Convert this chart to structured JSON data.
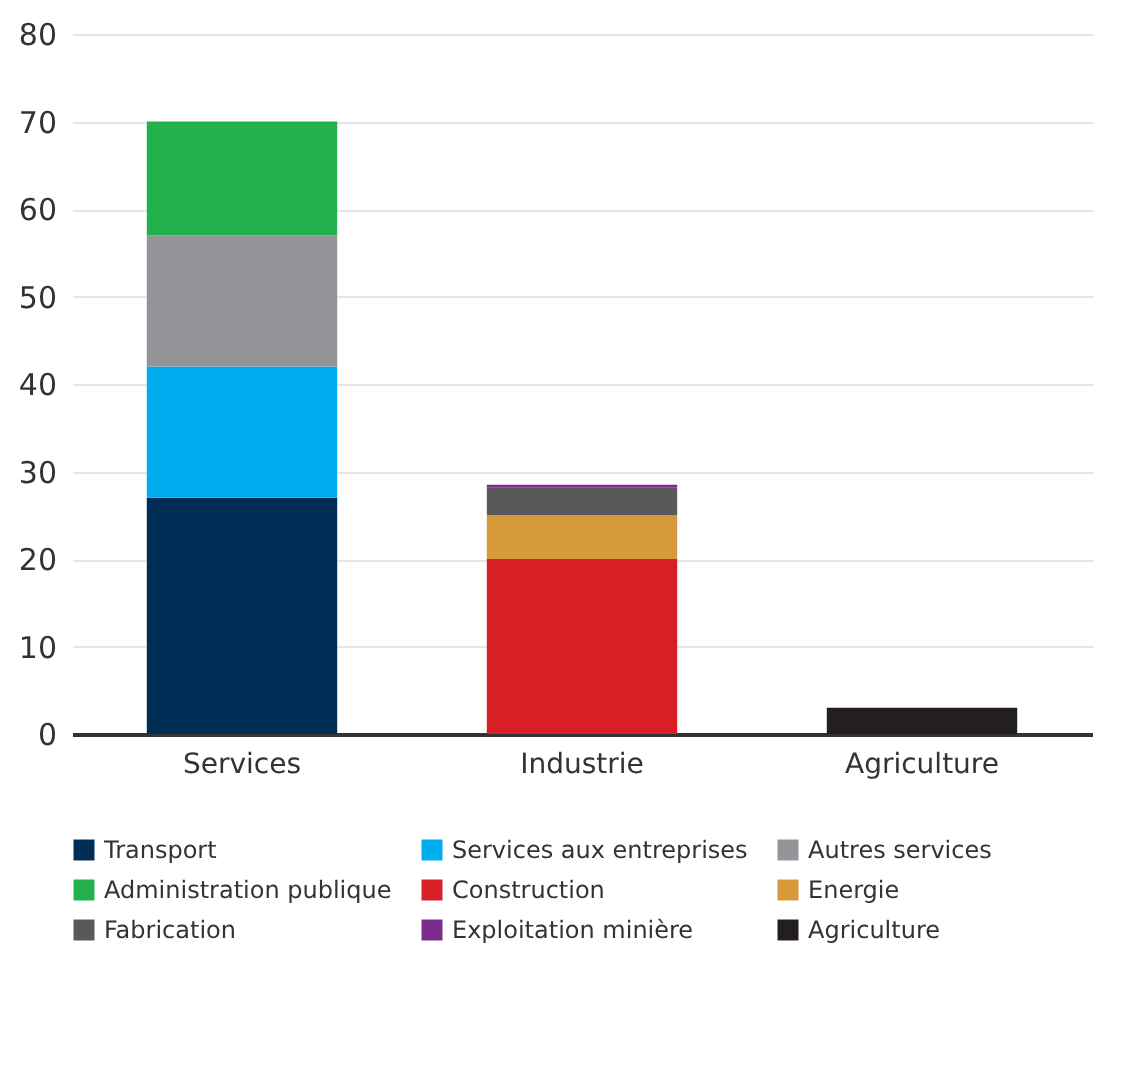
{
  "chart_data": {
    "type": "bar",
    "stacked": true,
    "categories": [
      "Services",
      "Industrie",
      "Agriculture"
    ],
    "ylim": [
      0,
      80
    ],
    "yticks": [
      0,
      10,
      20,
      30,
      40,
      50,
      60,
      70,
      80
    ],
    "grid": "y",
    "legend": "bottom",
    "series": [
      {
        "name": "Transport",
        "color": "#002d56",
        "values": [
          27,
          null,
          null
        ]
      },
      {
        "name": "Services aux entreprises",
        "color": "#00aeef",
        "values": [
          15,
          null,
          null
        ]
      },
      {
        "name": "Autres services",
        "color": "#939598",
        "values": [
          15,
          null,
          null
        ]
      },
      {
        "name": "Administration publique",
        "color": "#22b14c",
        "values": [
          13,
          null,
          null
        ]
      },
      {
        "name": "Construction",
        "color": "#d91f26",
        "values": [
          null,
          20,
          null
        ]
      },
      {
        "name": "Energie",
        "color": "#d69a3a",
        "values": [
          null,
          5,
          null
        ]
      },
      {
        "name": "Fabrication",
        "color": "#58595b",
        "values": [
          null,
          3.2,
          null
        ]
      },
      {
        "name": "Exploitation minière",
        "color": "#7b2d8e",
        "values": [
          null,
          0.3,
          null
        ]
      },
      {
        "name": "Agriculture",
        "color": "#231f20",
        "values": [
          null,
          null,
          3
        ]
      }
    ]
  }
}
